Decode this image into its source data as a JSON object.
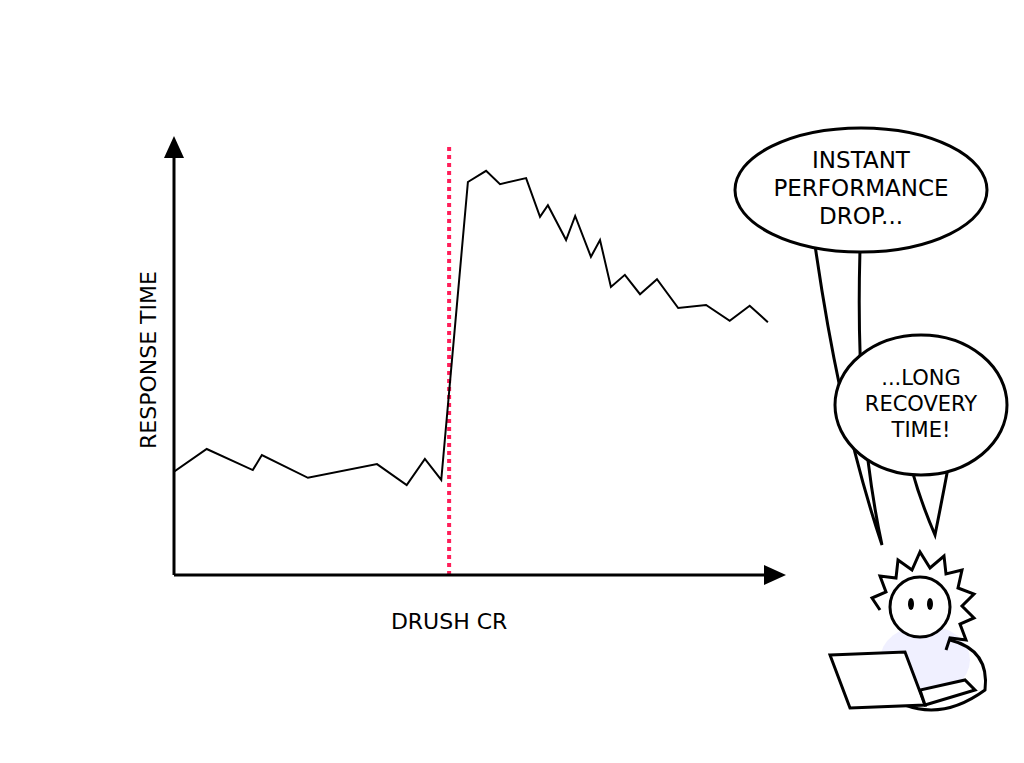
{
  "chart_data": {
    "type": "line",
    "y_label": "RESPONSE TIME",
    "x": [
      0,
      5.4,
      13.0,
      14.5,
      22.1,
      33.5,
      38.4,
      41.4,
      44.1,
      48.5,
      51.5,
      53.8,
      58.1,
      60.4,
      61.7,
      64.7,
      66.2,
      68.8,
      70.3,
      72.1,
      74.4,
      76.9,
      79.7,
      83.2,
      87.8,
      91.7,
      95.0,
      98.0
    ],
    "values": [
      24,
      29.3,
      24.4,
      27.9,
      22.6,
      25.8,
      20.9,
      27,
      22.1,
      91.4,
      94,
      90.9,
      92.3,
      83.3,
      86,
      77.9,
      83.5,
      74,
      77.9,
      67,
      69.8,
      65.3,
      68.8,
      62.1,
      62.8,
      59.1,
      62.6,
      58.8
    ],
    "color": "#000000",
    "marker": "none",
    "xlim": [
      0,
      100
    ],
    "ylim": [
      0,
      100
    ],
    "xticks": [],
    "yticks": [],
    "tick_labels": false,
    "grid": false,
    "reference_lines": [
      {
        "x": 45.4,
        "label": "DRUSH CR",
        "color": "#ff1f5a",
        "line_style": "dotted"
      }
    ],
    "annotations": [
      {
        "text": "INSTANT PERFORMANCE DROP..."
      },
      {
        "text": "...LONG RECOVERY TIME!"
      }
    ]
  }
}
